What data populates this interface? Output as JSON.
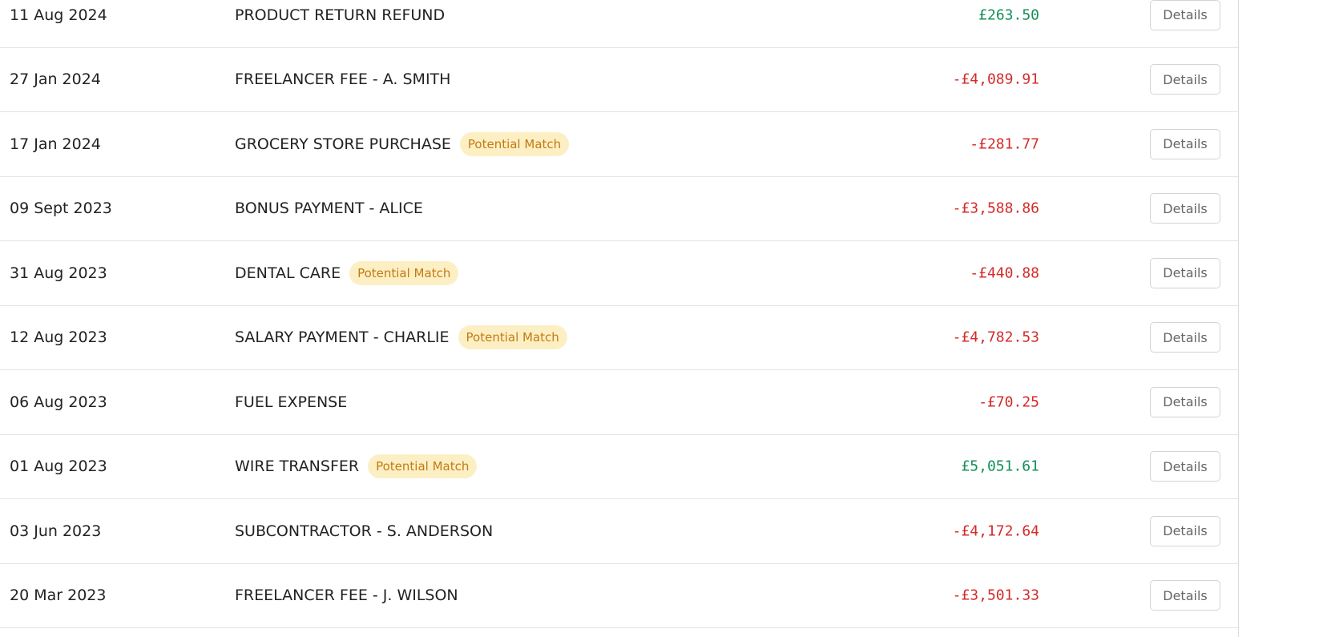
{
  "table": {
    "rows": [
      {
        "date": "11 Aug 2024",
        "description": "PRODUCT RETURN REFUND",
        "amount": "£263.50",
        "button": "Details"
      },
      {
        "date": "27 Jan 2024",
        "description": "FREELANCER FEE - A. SMITH",
        "amount": "-£4,089.91",
        "button": "Details"
      },
      {
        "date": "17 Jan 2024",
        "description": "GROCERY STORE PURCHASE",
        "badge": "Potential Match",
        "amount": "-£281.77",
        "button": "Details"
      },
      {
        "date": "09 Sept 2023",
        "description": "BONUS PAYMENT - ALICE",
        "amount": "-£3,588.86",
        "button": "Details"
      },
      {
        "date": "31 Aug 2023",
        "description": "DENTAL CARE",
        "badge": "Potential Match",
        "amount": "-£440.88",
        "button": "Details"
      },
      {
        "date": "12 Aug 2023",
        "description": "SALARY PAYMENT - CHARLIE",
        "badge": "Potential Match",
        "amount": "-£4,782.53",
        "button": "Details"
      },
      {
        "date": "06 Aug 2023",
        "description": "FUEL EXPENSE",
        "amount": "-£70.25",
        "button": "Details"
      },
      {
        "date": "01 Aug 2023",
        "description": "WIRE TRANSFER",
        "badge": "Potential Match",
        "amount": "£5,051.61",
        "button": "Details"
      },
      {
        "date": "03 Jun 2023",
        "description": "SUBCONTRACTOR - S. ANDERSON",
        "amount": "-£4,172.64",
        "button": "Details"
      },
      {
        "date": "20 Mar 2023",
        "description": "FREELANCER FEE - J. WILSON",
        "amount": "-£3,501.33",
        "button": "Details"
      }
    ]
  }
}
